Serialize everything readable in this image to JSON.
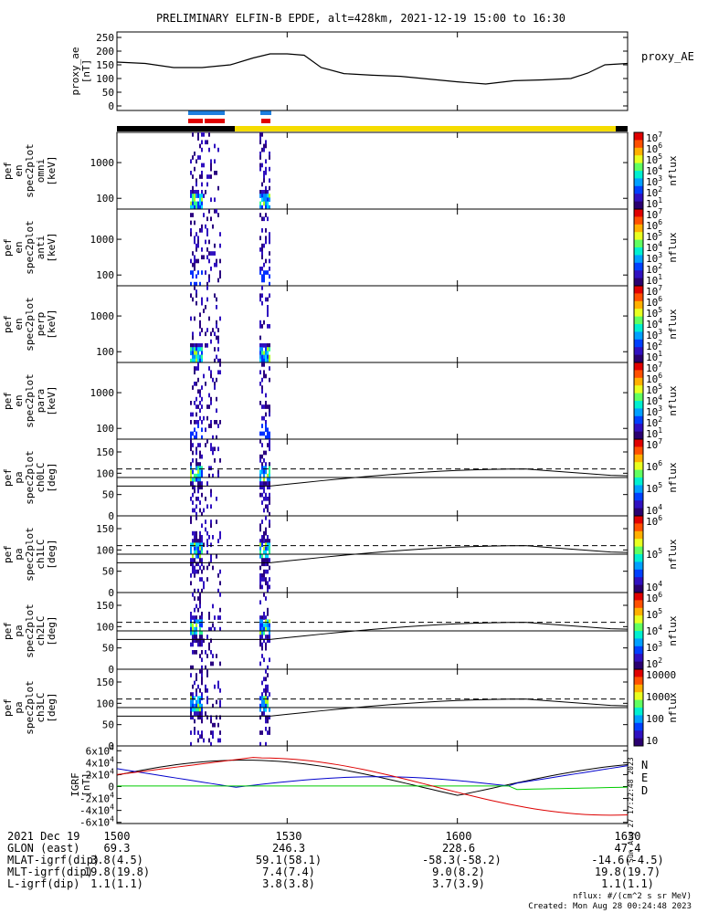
{
  "title": "PRELIMINARY ELFIN-B EPDE, alt=428km, 2021-12-19 15:00 to 16:30",
  "chart_data": [
    {
      "type": "line",
      "panel": "proxy_ae",
      "ylabel": [
        "proxy_ae",
        "[nT]"
      ],
      "right_label": "proxy_AE",
      "ylim": [
        0,
        260
      ],
      "yticks": [
        "250",
        "200",
        "150",
        "100",
        "50",
        "0"
      ],
      "ytick_values": [
        250,
        200,
        150,
        100,
        50,
        0
      ],
      "x": [
        0,
        5,
        10,
        15,
        20,
        24,
        27,
        30,
        33,
        36,
        40,
        45,
        50,
        55,
        60,
        65,
        70,
        75,
        80,
        83,
        86,
        90
      ],
      "y": [
        160,
        155,
        140,
        140,
        150,
        175,
        190,
        190,
        185,
        140,
        118,
        112,
        108,
        98,
        88,
        80,
        92,
        95,
        100,
        120,
        150,
        155
      ]
    },
    {
      "type": "heatmap",
      "panel": "omni",
      "ylabel": [
        "elb",
        "pef",
        "en",
        "spec2plot",
        "omni",
        "[keV]"
      ],
      "yticks": [
        "1000",
        "100"
      ],
      "ytick_values": [
        1000,
        100
      ],
      "colorbar": {
        "label": "nflux",
        "ticks": [
          "10",
          "10",
          "10",
          "10",
          "10",
          "10",
          "10"
        ],
        "exps": [
          "7",
          "6",
          "5",
          "4",
          "3",
          "2",
          "1"
        ]
      }
    },
    {
      "type": "heatmap",
      "panel": "anti",
      "ylabel": [
        "elb",
        "pef",
        "en",
        "spec2plot",
        "anti",
        "[keV]"
      ],
      "yticks": [
        "1000",
        "100"
      ],
      "ytick_values": [
        1000,
        100
      ],
      "colorbar": {
        "label": "nflux",
        "ticks": [
          "10",
          "10",
          "10",
          "10",
          "10",
          "10",
          "10"
        ],
        "exps": [
          "7",
          "6",
          "5",
          "4",
          "3",
          "2",
          "1"
        ]
      }
    },
    {
      "type": "heatmap",
      "panel": "perp",
      "ylabel": [
        "elb",
        "pef",
        "en",
        "spec2plot",
        "perp",
        "[keV]"
      ],
      "yticks": [
        "1000",
        "100"
      ],
      "ytick_values": [
        1000,
        100
      ],
      "colorbar": {
        "label": "nflux",
        "ticks": [
          "10",
          "10",
          "10",
          "10",
          "10",
          "10",
          "10"
        ],
        "exps": [
          "7",
          "6",
          "5",
          "4",
          "3",
          "2",
          "1"
        ]
      }
    },
    {
      "type": "heatmap",
      "panel": "para",
      "ylabel": [
        "elb",
        "pef",
        "en",
        "spec2plot",
        "para",
        "[keV]"
      ],
      "yticks": [
        "1000",
        "100"
      ],
      "ytick_values": [
        1000,
        100
      ],
      "colorbar": {
        "label": "nflux",
        "ticks": [
          "10",
          "10",
          "10",
          "10",
          "10",
          "10",
          "10"
        ],
        "exps": [
          "7",
          "6",
          "5",
          "4",
          "3",
          "2",
          "1"
        ]
      }
    },
    {
      "type": "heatmap",
      "panel": "ch0LC",
      "ylabel": [
        "elb",
        "pef",
        "pa",
        "spec2plot",
        "ch0LC",
        "[deg]"
      ],
      "ylim": [
        0,
        180
      ],
      "yticks": [
        "150",
        "100",
        "50",
        "0"
      ],
      "ytick_values": [
        150,
        100,
        50,
        0
      ],
      "colorbar": {
        "label": "nflux",
        "ticks": [
          "10",
          "10",
          "10",
          "10"
        ],
        "exps": [
          "7",
          "6",
          "5",
          "4"
        ]
      }
    },
    {
      "type": "heatmap",
      "panel": "ch1LC",
      "ylabel": [
        "elb",
        "pef",
        "pa",
        "spec2plot",
        "ch1LC",
        "[deg]"
      ],
      "ylim": [
        0,
        180
      ],
      "yticks": [
        "150",
        "100",
        "50",
        "0"
      ],
      "ytick_values": [
        150,
        100,
        50,
        0
      ],
      "colorbar": {
        "label": "nflux",
        "ticks": [
          "10",
          "10",
          "10"
        ],
        "exps": [
          "6",
          "5",
          "4"
        ]
      }
    },
    {
      "type": "heatmap",
      "panel": "ch2LC",
      "ylabel": [
        "elb",
        "pef",
        "pa",
        "spec2plot",
        "ch2LC",
        "[deg]"
      ],
      "ylim": [
        0,
        180
      ],
      "yticks": [
        "150",
        "100",
        "50",
        "0"
      ],
      "ytick_values": [
        150,
        100,
        50,
        0
      ],
      "colorbar": {
        "label": "nflux",
        "ticks": [
          "10",
          "10",
          "10",
          "10",
          "10"
        ],
        "exps": [
          "6",
          "5",
          "4",
          "3",
          "2"
        ]
      }
    },
    {
      "type": "heatmap",
      "panel": "ch3LC",
      "ylabel": [
        "elb",
        "pef",
        "pa",
        "spec2plot",
        "ch3LC",
        "[deg]"
      ],
      "ylim": [
        0,
        180
      ],
      "yticks": [
        "150",
        "100",
        "50",
        "0"
      ],
      "ytick_values": [
        150,
        100,
        50,
        0
      ],
      "colorbar": {
        "label": "nflux",
        "ticks": [
          "10000",
          "1000",
          "100",
          "10"
        ]
      }
    },
    {
      "type": "line",
      "panel": "igrf",
      "ylabel": [
        "IGRF",
        "[nT]"
      ],
      "ylim": [
        -65000,
        65000
      ],
      "yticks": [
        "6x10",
        "4x10",
        "2x10",
        "0",
        "-2x10",
        "-4x10",
        "-6x10"
      ],
      "ytick_values": [
        60000,
        40000,
        20000,
        0,
        -20000,
        -40000,
        -60000
      ],
      "series": [
        {
          "name": "N",
          "color": "#0000cc"
        },
        {
          "name": "E",
          "color": "#00cc00"
        },
        {
          "name": "D",
          "color": "#dd0000"
        }
      ]
    }
  ],
  "side_text": "Sun Aug 27 17:22:48 2023",
  "footer": {
    "rows": [
      [
        "2021 Dec 19",
        "1500",
        "1530",
        "1600",
        "1630"
      ],
      [
        "GLON (east)",
        "69.3",
        "246.3",
        "228.6",
        "47.4"
      ],
      [
        "MLAT-igrf(dip)",
        "3.8(4.5)",
        "59.1(58.1)",
        "-58.3(-58.2)",
        "-14.6(-4.5)"
      ],
      [
        "MLT-igrf(dip)",
        "19.8(19.8)",
        "7.4(7.4)",
        "9.0(8.2)",
        "19.8(19.7)"
      ],
      [
        "L-igrf(dip)",
        "1.1(1.1)",
        "3.8(3.8)",
        "3.7(3.9)",
        "1.1(1.1)"
      ]
    ],
    "units": "nflux: #/(cm^2 s sr MeV)",
    "created": "Created: Mon Aug 28 00:24:48 2023"
  }
}
